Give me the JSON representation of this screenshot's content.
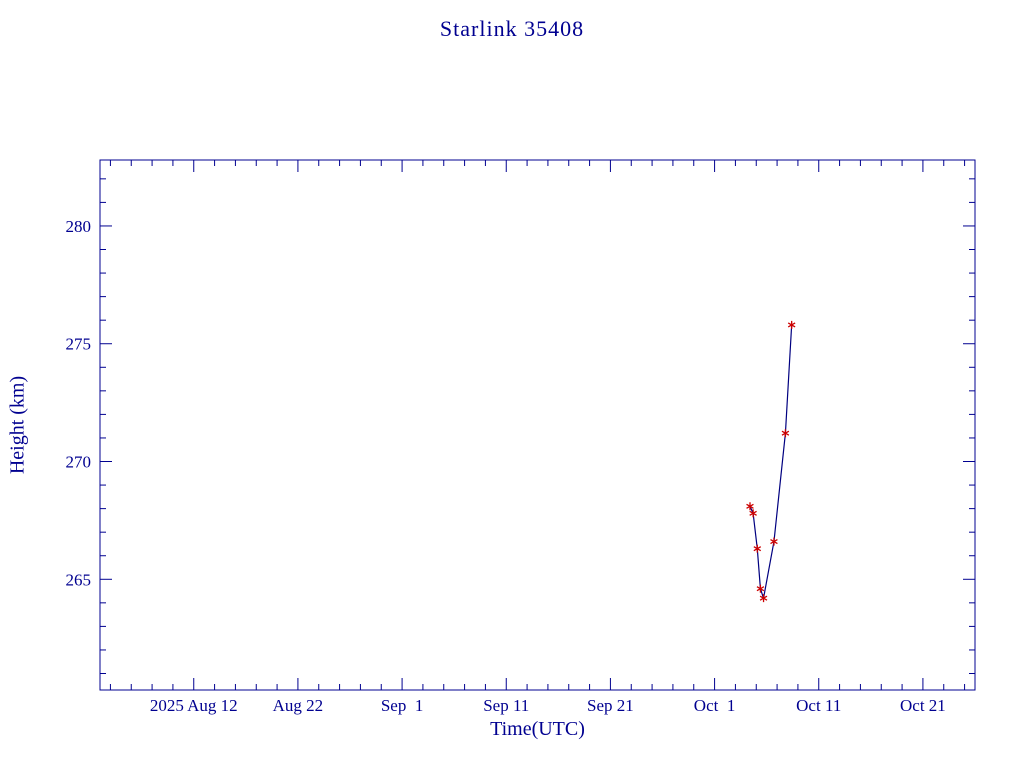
{
  "chart_data": {
    "type": "line",
    "title": "Starlink 35408",
    "xlabel": "Time(UTC)",
    "ylabel": "Height (km)",
    "grid": false,
    "legend": "none",
    "colors": {
      "axis": "#000090",
      "line": "#000080",
      "marker": "#cc0000",
      "background": "#ffffff"
    },
    "x_axis": {
      "unit": "days",
      "epoch": "2025-08-03",
      "range_days": [
        0,
        84
      ],
      "major_tick_days": [
        9,
        19,
        29,
        39,
        49,
        59,
        69,
        79
      ],
      "tick_labels": [
        "2025 Aug 12",
        "Aug 22",
        "Sep  1",
        "Sep 11",
        "Sep 21",
        "Oct  1",
        "Oct 11",
        "Oct 21"
      ],
      "minor_tick_step_days": 2
    },
    "y_axis": {
      "unit": "km",
      "range_km": [
        260.3,
        282.8
      ],
      "major_ticks": [
        265,
        270,
        275,
        280
      ],
      "tick_labels": [
        "265",
        "270",
        "275",
        "280"
      ],
      "minor_tick_step_km": 1
    },
    "series": [
      {
        "name": "orbital-height",
        "marker": "asterisk",
        "points": [
          {
            "date_approx": "2025 Oct 4",
            "day": 62.4,
            "height_km": 268.1
          },
          {
            "date_approx": "2025 Oct 4",
            "day": 62.7,
            "height_km": 267.8
          },
          {
            "date_approx": "2025 Oct 5",
            "day": 63.1,
            "height_km": 266.3
          },
          {
            "date_approx": "2025 Oct 5",
            "day": 63.4,
            "height_km": 264.6
          },
          {
            "date_approx": "2025 Oct 5",
            "day": 63.7,
            "height_km": 264.2
          },
          {
            "date_approx": "2025 Oct 6",
            "day": 64.7,
            "height_km": 266.6
          },
          {
            "date_approx": "2025 Oct 7",
            "day": 65.8,
            "height_km": 271.2
          },
          {
            "date_approx": "2025 Oct 8",
            "day": 66.4,
            "height_km": 275.8
          }
        ]
      }
    ]
  }
}
